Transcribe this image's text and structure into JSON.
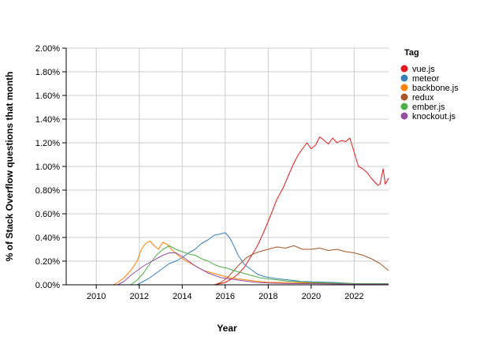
{
  "chart_data": {
    "type": "line",
    "xlabel": "Year",
    "ylabel": "% of Stack Overflow questions that month",
    "xlim": [
      2008.6,
      2023.6
    ],
    "ylim": [
      0,
      2.0
    ],
    "x_ticks": [
      {
        "value": 2010,
        "label": "2010"
      },
      {
        "value": 2012,
        "label": "2012"
      },
      {
        "value": 2014,
        "label": "2014"
      },
      {
        "value": 2016,
        "label": "2016"
      },
      {
        "value": 2018,
        "label": "2018"
      },
      {
        "value": 2020,
        "label": "2020"
      },
      {
        "value": 2022,
        "label": "2022"
      }
    ],
    "y_ticks": [
      {
        "value": 0.0,
        "label": "0.00%"
      },
      {
        "value": 0.2,
        "label": "0.20%"
      },
      {
        "value": 0.4,
        "label": "0.40%"
      },
      {
        "value": 0.6,
        "label": "0.60%"
      },
      {
        "value": 0.8,
        "label": "0.80%"
      },
      {
        "value": 1.0,
        "label": "1.00%"
      },
      {
        "value": 1.2,
        "label": "1.20%"
      },
      {
        "value": 1.4,
        "label": "1.40%"
      },
      {
        "value": 1.6,
        "label": "1.60%"
      },
      {
        "value": 1.8,
        "label": "1.80%"
      },
      {
        "value": 2.0,
        "label": "2.00%"
      }
    ],
    "grid": true,
    "legend_title": "Tag",
    "legend_position": "top-right",
    "series": [
      {
        "name": "vue.js",
        "color": "#E41A1C",
        "x": [
          2008.6,
          2015.5,
          2016.0,
          2016.3,
          2016.6,
          2016.9,
          2017.2,
          2017.5,
          2017.8,
          2018.1,
          2018.4,
          2018.7,
          2019.0,
          2019.2,
          2019.4,
          2019.6,
          2019.8,
          2020.0,
          2020.2,
          2020.4,
          2020.6,
          2020.8,
          2021.0,
          2021.2,
          2021.4,
          2021.6,
          2021.8,
          2022.0,
          2022.2,
          2022.4,
          2022.6,
          2022.8,
          2023.0,
          2023.1,
          2023.2,
          2023.35,
          2023.45,
          2023.6
        ],
        "y": [
          0.0,
          0.0,
          0.02,
          0.05,
          0.09,
          0.15,
          0.24,
          0.33,
          0.45,
          0.58,
          0.72,
          0.82,
          0.95,
          1.03,
          1.1,
          1.15,
          1.2,
          1.15,
          1.18,
          1.25,
          1.22,
          1.19,
          1.24,
          1.2,
          1.22,
          1.21,
          1.24,
          1.12,
          1.0,
          0.98,
          0.95,
          0.9,
          0.86,
          0.84,
          0.85,
          0.98,
          0.85,
          0.9
        ]
      },
      {
        "name": "meteor",
        "color": "#377EB8",
        "x": [
          2008.6,
          2011.9,
          2012.2,
          2012.5,
          2012.8,
          2013.1,
          2013.4,
          2013.7,
          2014.0,
          2014.3,
          2014.6,
          2014.9,
          2015.2,
          2015.5,
          2015.8,
          2016.0,
          2016.2,
          2016.4,
          2016.6,
          2016.9,
          2017.2,
          2017.5,
          2017.8,
          2018.1,
          2018.5,
          2019.0,
          2019.5,
          2020.0,
          2021.0,
          2022.0,
          2023.6
        ],
        "y": [
          0.0,
          0.0,
          0.03,
          0.06,
          0.1,
          0.14,
          0.18,
          0.2,
          0.23,
          0.27,
          0.3,
          0.35,
          0.38,
          0.42,
          0.43,
          0.44,
          0.4,
          0.33,
          0.25,
          0.17,
          0.13,
          0.09,
          0.07,
          0.06,
          0.05,
          0.04,
          0.03,
          0.025,
          0.02,
          0.01,
          0.01
        ]
      },
      {
        "name": "backbone.js",
        "color": "#FF7F00",
        "x": [
          2008.6,
          2010.8,
          2011.0,
          2011.3,
          2011.6,
          2011.9,
          2012.1,
          2012.3,
          2012.5,
          2012.7,
          2012.9,
          2013.1,
          2013.3,
          2013.5,
          2013.8,
          2014.1,
          2014.4,
          2014.7,
          2015.0,
          2015.4,
          2015.8,
          2016.2,
          2016.6,
          2017.0,
          2017.5,
          2018.0,
          2019.0,
          2020.0,
          2022.0,
          2023.6
        ],
        "y": [
          0.0,
          0.0,
          0.02,
          0.06,
          0.12,
          0.2,
          0.3,
          0.35,
          0.37,
          0.33,
          0.3,
          0.36,
          0.34,
          0.3,
          0.25,
          0.21,
          0.18,
          0.15,
          0.12,
          0.1,
          0.08,
          0.06,
          0.05,
          0.04,
          0.03,
          0.02,
          0.02,
          0.015,
          0.01,
          0.01
        ]
      },
      {
        "name": "redux",
        "color": "#A65628",
        "x": [
          2008.6,
          2015.5,
          2015.8,
          2016.1,
          2016.4,
          2016.7,
          2017.0,
          2017.3,
          2017.6,
          2018.0,
          2018.4,
          2018.8,
          2019.2,
          2019.6,
          2020.0,
          2020.4,
          2020.8,
          2021.2,
          2021.6,
          2022.0,
          2022.4,
          2022.8,
          2023.2,
          2023.6
        ],
        "y": [
          0.0,
          0.0,
          0.02,
          0.06,
          0.12,
          0.18,
          0.23,
          0.26,
          0.28,
          0.3,
          0.32,
          0.31,
          0.33,
          0.3,
          0.3,
          0.31,
          0.29,
          0.3,
          0.28,
          0.27,
          0.25,
          0.22,
          0.18,
          0.12
        ]
      },
      {
        "name": "ember.js",
        "color": "#4DAF4A",
        "x": [
          2008.6,
          2011.6,
          2011.9,
          2012.2,
          2012.5,
          2012.8,
          2013.1,
          2013.4,
          2013.7,
          2014.0,
          2014.3,
          2014.6,
          2014.9,
          2015.2,
          2015.5,
          2015.8,
          2016.1,
          2016.4,
          2016.8,
          2017.2,
          2017.6,
          2018.0,
          2018.5,
          2019.0,
          2019.5,
          2020.0,
          2021.0,
          2022.0,
          2023.6
        ],
        "y": [
          0.0,
          0.0,
          0.04,
          0.1,
          0.18,
          0.25,
          0.3,
          0.33,
          0.3,
          0.28,
          0.26,
          0.25,
          0.22,
          0.2,
          0.17,
          0.15,
          0.14,
          0.12,
          0.1,
          0.08,
          0.06,
          0.05,
          0.04,
          0.03,
          0.025,
          0.02,
          0.015,
          0.01,
          0.01
        ]
      },
      {
        "name": "knockout.js",
        "color": "#984EA3",
        "x": [
          2008.6,
          2011.0,
          2011.3,
          2011.6,
          2011.9,
          2012.2,
          2012.5,
          2012.8,
          2013.1,
          2013.4,
          2013.7,
          2014.0,
          2014.3,
          2014.6,
          2014.9,
          2015.2,
          2015.5,
          2015.8,
          2016.2,
          2016.6,
          2017.0,
          2017.5,
          2018.0,
          2019.0,
          2020.0,
          2022.0,
          2023.6
        ],
        "y": [
          0.0,
          0.0,
          0.03,
          0.08,
          0.12,
          0.16,
          0.19,
          0.22,
          0.25,
          0.27,
          0.27,
          0.24,
          0.2,
          0.16,
          0.13,
          0.1,
          0.08,
          0.06,
          0.05,
          0.04,
          0.03,
          0.02,
          0.015,
          0.01,
          0.01,
          0.005,
          0.005
        ]
      }
    ]
  }
}
